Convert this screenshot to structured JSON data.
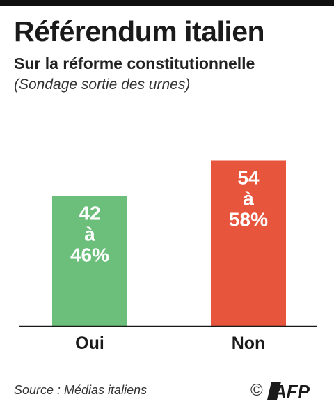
{
  "header": {
    "title": "Référendum italien",
    "subtitle": "Sur la réforme constitutionnelle",
    "note": "(Sondage sortie des urnes)"
  },
  "chart_data": {
    "type": "bar",
    "title": "Référendum italien",
    "subtitle": "Sur la réforme constitutionnelle",
    "categories": [
      "Oui",
      "Non"
    ],
    "ranges": [
      [
        42,
        46
      ],
      [
        54,
        58
      ]
    ],
    "values": [
      44,
      56
    ],
    "data_labels": [
      [
        "42",
        "à",
        "46%"
      ],
      [
        "54",
        "à",
        "58%"
      ]
    ],
    "colors": [
      "#6bbf7b",
      "#e8553d"
    ],
    "grid": false,
    "legend": "none"
  },
  "footer": {
    "source": "Source : Médias italiens",
    "copyright": "©",
    "logo": "AFP"
  }
}
